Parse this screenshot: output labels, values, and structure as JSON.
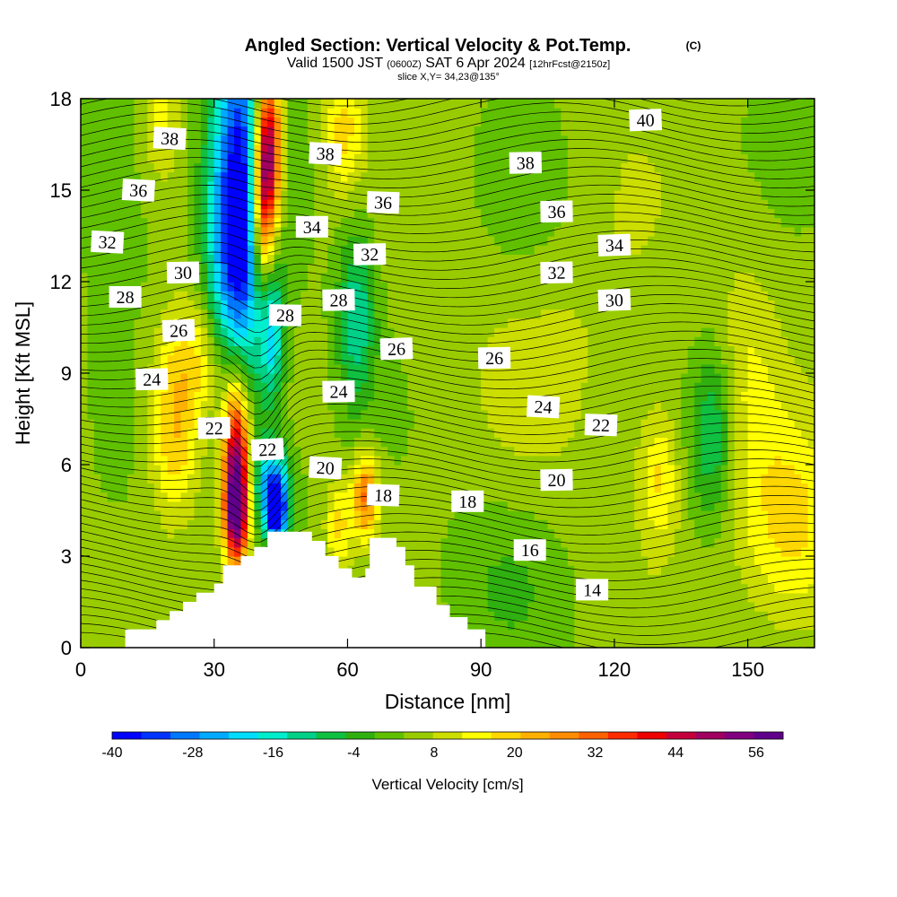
{
  "chart_data": {
    "type": "heatmap",
    "title": {
      "main": "Angled Section: Vertical Velocity & Pot.Temp.",
      "copyright": "(C)",
      "valid": "Valid 1500 JST",
      "valid_z": "(0600Z)",
      "date": "SAT 6 Apr 2024",
      "forecast": "[12hrFcst@2150z]",
      "slice": "slice X,Y= 34,23@135°"
    },
    "xlabel": "Distance [nm]",
    "ylabel": "Height [Kft MSL]",
    "xlim": [
      0,
      165
    ],
    "ylim": [
      0,
      18
    ],
    "x_ticks": [
      "0",
      "30",
      "60",
      "90",
      "120",
      "150"
    ],
    "y_ticks": [
      "0",
      "3",
      "6",
      "9",
      "12",
      "15",
      "18"
    ],
    "colorbar": {
      "label": "Vertical Velocity [cm/s]",
      "tick_labels": [
        "-40",
        "-28",
        "-16",
        "-4",
        "8",
        "20",
        "32",
        "44",
        "56"
      ],
      "min": -40,
      "max": 60,
      "colors": [
        "#0000ff",
        "#0033ff",
        "#0077ff",
        "#00aaff",
        "#00ddff",
        "#00eecc",
        "#00d088",
        "#10c040",
        "#30b010",
        "#60c000",
        "#99cc00",
        "#ccdd00",
        "#ffff00",
        "#ffd700",
        "#ffb000",
        "#ff8c00",
        "#ff6000",
        "#ff2a00",
        "#ee0000",
        "#c4003c",
        "#a00060",
        "#800080",
        "#60008a"
      ]
    },
    "theta_labels": [
      {
        "v": "40",
        "x": 127,
        "y": 17.3
      },
      {
        "v": "38",
        "x": 20,
        "y": 16.7
      },
      {
        "v": "38",
        "x": 55,
        "y": 16.2
      },
      {
        "v": "38",
        "x": 100,
        "y": 15.9
      },
      {
        "v": "36",
        "x": 13,
        "y": 15.0
      },
      {
        "v": "36",
        "x": 68,
        "y": 14.6
      },
      {
        "v": "36",
        "x": 107,
        "y": 14.3
      },
      {
        "v": "34",
        "x": 52,
        "y": 13.8
      },
      {
        "v": "34",
        "x": 120,
        "y": 13.2
      },
      {
        "v": "32",
        "x": 6,
        "y": 13.3
      },
      {
        "v": "32",
        "x": 65,
        "y": 12.9
      },
      {
        "v": "32",
        "x": 107,
        "y": 12.3
      },
      {
        "v": "30",
        "x": 23,
        "y": 12.3
      },
      {
        "v": "30",
        "x": 120,
        "y": 11.4
      },
      {
        "v": "28",
        "x": 10,
        "y": 11.5
      },
      {
        "v": "28",
        "x": 46,
        "y": 10.9
      },
      {
        "v": "28",
        "x": 58,
        "y": 11.4
      },
      {
        "v": "26",
        "x": 22,
        "y": 10.4
      },
      {
        "v": "26",
        "x": 71,
        "y": 9.8
      },
      {
        "v": "26",
        "x": 93,
        "y": 9.5
      },
      {
        "v": "24",
        "x": 16,
        "y": 8.8
      },
      {
        "v": "24",
        "x": 58,
        "y": 8.4
      },
      {
        "v": "24",
        "x": 104,
        "y": 7.9
      },
      {
        "v": "22",
        "x": 30,
        "y": 7.2
      },
      {
        "v": "22",
        "x": 42,
        "y": 6.5
      },
      {
        "v": "22",
        "x": 117,
        "y": 7.3
      },
      {
        "v": "20",
        "x": 55,
        "y": 5.9
      },
      {
        "v": "20",
        "x": 107,
        "y": 5.5
      },
      {
        "v": "18",
        "x": 68,
        "y": 5.0
      },
      {
        "v": "18",
        "x": 87,
        "y": 4.8
      },
      {
        "v": "16",
        "x": 101,
        "y": 3.2
      },
      {
        "v": "14",
        "x": 115,
        "y": 1.9
      }
    ],
    "terrain": [
      [
        10,
        0.6
      ],
      [
        17,
        0.9
      ],
      [
        20,
        1.2
      ],
      [
        23,
        1.5
      ],
      [
        26,
        1.8
      ],
      [
        30,
        2.1
      ],
      [
        32,
        2.7
      ],
      [
        36,
        3.0
      ],
      [
        39,
        3.3
      ],
      [
        42,
        3.8
      ],
      [
        52,
        3.5
      ],
      [
        55,
        3.0
      ],
      [
        58,
        2.6
      ],
      [
        61,
        2.3
      ],
      [
        64,
        2.6
      ],
      [
        65,
        3.6
      ],
      [
        71,
        3.3
      ],
      [
        73,
        2.7
      ],
      [
        75,
        2.0
      ],
      [
        80,
        1.4
      ],
      [
        83,
        1.0
      ],
      [
        87,
        0.6
      ],
      [
        91,
        0.6
      ]
    ],
    "w_blobs": [
      {
        "x": 37,
        "y": 15.5,
        "sx": 5,
        "sy": 5,
        "w": -35
      },
      {
        "x": 34,
        "y": 13.0,
        "sx": 4,
        "sy": 3,
        "w": -20
      },
      {
        "x": 42,
        "y": 16.5,
        "sx": 2.3,
        "sy": 2,
        "w": 56
      },
      {
        "x": 41,
        "y": 14.0,
        "sx": 2.0,
        "sy": 2,
        "w": 34
      },
      {
        "x": 43,
        "y": 10.3,
        "sx": 1.8,
        "sy": 1.5,
        "w": -20
      },
      {
        "x": 35,
        "y": 6.0,
        "sx": 2.2,
        "sy": 2,
        "w": 52
      },
      {
        "x": 35,
        "y": 4.3,
        "sx": 1.8,
        "sy": 1,
        "w": 30
      },
      {
        "x": 43,
        "y": 5.3,
        "sx": 3.0,
        "sy": 1,
        "w": -28
      },
      {
        "x": 44,
        "y": 4.4,
        "sx": 1.6,
        "sy": 0.7,
        "w": -40
      },
      {
        "x": 62,
        "y": 10.8,
        "sx": 3.0,
        "sy": 2,
        "w": -18
      },
      {
        "x": 64,
        "y": 5.0,
        "sx": 2.0,
        "sy": 1,
        "w": 26
      },
      {
        "x": 58,
        "y": 4.0,
        "sx": 2.0,
        "sy": 1,
        "w": 14
      },
      {
        "x": 21,
        "y": 6.8,
        "sx": 4.0,
        "sy": 1.8,
        "w": 16
      },
      {
        "x": 26,
        "y": 9.5,
        "sx": 6.0,
        "sy": 1.5,
        "w": 14
      },
      {
        "x": 59,
        "y": 17.0,
        "sx": 3.0,
        "sy": 1.5,
        "w": 14
      },
      {
        "x": 18,
        "y": 17.5,
        "sx": 3.0,
        "sy": 1.5,
        "w": 10
      },
      {
        "x": 96,
        "y": 2.5,
        "sx": 10,
        "sy": 2,
        "w": -6
      },
      {
        "x": 142,
        "y": 7.0,
        "sx": 3.5,
        "sy": 2,
        "w": -16
      },
      {
        "x": 130,
        "y": 5.5,
        "sx": 3.0,
        "sy": 1.5,
        "w": 12
      },
      {
        "x": 160,
        "y": 4.0,
        "sx": 8.0,
        "sy": 2.5,
        "w": 14
      },
      {
        "x": 150,
        "y": 9.0,
        "sx": 5.0,
        "sy": 3,
        "w": 6
      },
      {
        "x": 110,
        "y": 10.0,
        "sx": 25,
        "sy": 6,
        "w": 4
      },
      {
        "x": 100,
        "y": 15.0,
        "sx": 8,
        "sy": 2,
        "w": -5
      },
      {
        "x": 10,
        "y": 16.0,
        "sx": 6,
        "sy": 3,
        "w": -4
      }
    ]
  }
}
